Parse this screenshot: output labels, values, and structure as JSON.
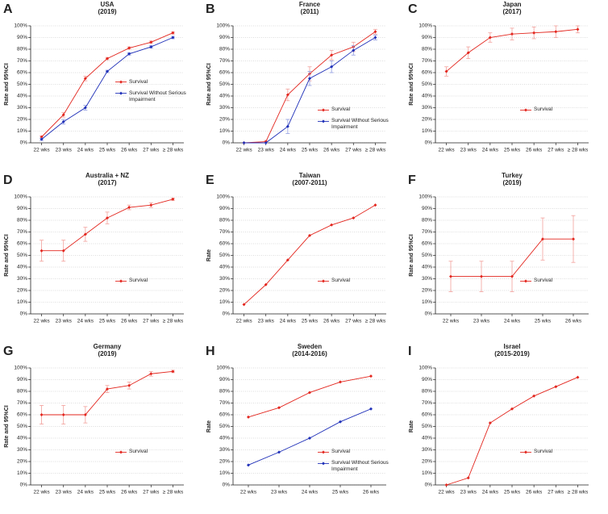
{
  "chart_data": [
    {
      "type": "line",
      "panel": "A",
      "title": "USA",
      "subtitle": "(2019)",
      "y_label": "Rate and 95%CI",
      "categories": [
        "22 wks",
        "23 wks",
        "24 wks",
        "25 wks",
        "26 wks",
        "27 wks",
        "≥ 28 wks"
      ],
      "series": [
        {
          "name": "Survival",
          "color": "#e3261e",
          "values": [
            5,
            24,
            55,
            72,
            81,
            86,
            94
          ],
          "error": [
            1,
            2,
            2,
            1,
            1,
            1,
            1
          ]
        },
        {
          "name": "Survival Without Serious Impairment",
          "color": "#1e2fb8",
          "values": [
            3,
            18,
            30,
            61,
            76,
            82,
            90
          ],
          "error": [
            1,
            2,
            2,
            1,
            1,
            1,
            1
          ]
        }
      ],
      "ylim": [
        0,
        100
      ],
      "yticks": [
        {
          "value": 0,
          "label": "0%"
        },
        {
          "value": 10,
          "label": "10%"
        },
        {
          "value": 20,
          "label": "20%"
        },
        {
          "value": 30,
          "label": "30%"
        },
        {
          "value": 40,
          "label": "40%"
        },
        {
          "value": 50,
          "label": "50%"
        },
        {
          "value": 60,
          "label": "60%"
        },
        {
          "value": 70,
          "label": "70%"
        },
        {
          "value": 80,
          "label": "80%"
        },
        {
          "value": 90,
          "label": "90%"
        },
        {
          "value": 100,
          "label": "100%"
        }
      ],
      "grid": true,
      "legend": "center right"
    },
    {
      "type": "line",
      "panel": "B",
      "title": "France",
      "subtitle": "(2011)",
      "y_label": "Rate and 95%CI",
      "categories": [
        "22 wks",
        "23 wks",
        "24 wks",
        "25 wks",
        "26 wks",
        "27 wks",
        "≥ 28 wks"
      ],
      "series": [
        {
          "name": "Survival",
          "color": "#e3261e",
          "values": [
            0,
            1,
            41,
            59,
            75,
            82,
            95
          ],
          "error": [
            null,
            1,
            5,
            6,
            4,
            4,
            2
          ]
        },
        {
          "name": "Survival Without Serious Impairment",
          "color": "#1e2fb8",
          "values": [
            0,
            0,
            14,
            55,
            65,
            79,
            90
          ],
          "error": [
            null,
            null,
            6,
            6,
            5,
            4,
            2
          ]
        }
      ],
      "ylim": [
        0,
        100
      ],
      "yticks": [
        {
          "value": 0,
          "label": "0%"
        },
        {
          "value": 10,
          "label": "10%"
        },
        {
          "value": 20,
          "label": "20%"
        },
        {
          "value": 30,
          "label": "30%"
        },
        {
          "value": 40,
          "label": "40%"
        },
        {
          "value": 50,
          "label": "50%"
        },
        {
          "value": 60,
          "label": "60%"
        },
        {
          "value": 70,
          "label": "70%"
        },
        {
          "value": 80,
          "label": "80%"
        },
        {
          "value": 90,
          "label": "90%"
        },
        {
          "value": 100,
          "label": "100%"
        }
      ],
      "grid": true,
      "legend": "lower right"
    },
    {
      "type": "line",
      "panel": "C",
      "title": "Japan",
      "subtitle": "(2017)",
      "y_label": "Rate and 95%CI",
      "categories": [
        "22 wks",
        "23 wks",
        "24 wks",
        "25 wks",
        "26 wks",
        "27 wks",
        "≥ 28 wks"
      ],
      "series": [
        {
          "name": "Survival",
          "color": "#e3261e",
          "values": [
            61,
            77,
            90,
            93,
            94,
            95,
            97
          ],
          "error": [
            4,
            5,
            4,
            5,
            5,
            5,
            3
          ]
        }
      ],
      "ylim": [
        0,
        100
      ],
      "yticks": [
        {
          "value": 0,
          "label": "0%"
        },
        {
          "value": 10,
          "label": "10%"
        },
        {
          "value": 20,
          "label": "20%"
        },
        {
          "value": 30,
          "label": "30%"
        },
        {
          "value": 40,
          "label": "40%"
        },
        {
          "value": 50,
          "label": "50%"
        },
        {
          "value": 60,
          "label": "60%"
        },
        {
          "value": 70,
          "label": "70%"
        },
        {
          "value": 80,
          "label": "80%"
        },
        {
          "value": 90,
          "label": "90%"
        },
        {
          "value": 100,
          "label": "100%"
        }
      ],
      "grid": true,
      "legend": "lower right"
    },
    {
      "type": "line",
      "panel": "D",
      "title": "Australia + NZ",
      "subtitle": "(2017)",
      "y_label": "Rate and 95%CI",
      "categories": [
        "22 wks",
        "23 wks",
        "24 wks",
        "25 wks",
        "26 wks",
        "27 wks",
        "≥ 28 wks"
      ],
      "series": [
        {
          "name": "Survival",
          "color": "#e3261e",
          "values": [
            54,
            54,
            68,
            82,
            91,
            93,
            98
          ],
          "error": [
            9,
            9,
            6,
            5,
            2,
            2,
            1
          ]
        }
      ],
      "ylim": [
        0,
        100
      ],
      "yticks": [
        {
          "value": 0,
          "label": "0%"
        },
        {
          "value": 10,
          "label": "10%"
        },
        {
          "value": 20,
          "label": "20%"
        },
        {
          "value": 30,
          "label": "30%"
        },
        {
          "value": 40,
          "label": "40%"
        },
        {
          "value": 50,
          "label": "50%"
        },
        {
          "value": 60,
          "label": "60%"
        },
        {
          "value": 70,
          "label": "70%"
        },
        {
          "value": 80,
          "label": "80%"
        },
        {
          "value": 90,
          "label": "90%"
        },
        {
          "value": 100,
          "label": "100%"
        }
      ],
      "grid": true,
      "legend": "lower right"
    },
    {
      "type": "line",
      "panel": "E",
      "title": "Taiwan",
      "subtitle": "(2007-2011)",
      "y_label": "Rate",
      "categories": [
        "22 wks",
        "23 wks",
        "24 wks",
        "25 wks",
        "26 wks",
        "27 wks",
        "≥ 28 wks"
      ],
      "series": [
        {
          "name": "Survival",
          "color": "#e3261e",
          "values": [
            8,
            25,
            46,
            67,
            76,
            82,
            93
          ]
        }
      ],
      "ylim": [
        0,
        100
      ],
      "yticks": [
        {
          "value": 0,
          "label": "0%"
        },
        {
          "value": 10,
          "label": "10%"
        },
        {
          "value": 20,
          "label": "20%"
        },
        {
          "value": 30,
          "label": "30%"
        },
        {
          "value": 40,
          "label": "40%"
        },
        {
          "value": 50,
          "label": "50%"
        },
        {
          "value": 60,
          "label": "60%"
        },
        {
          "value": 70,
          "label": "70%"
        },
        {
          "value": 80,
          "label": "80%"
        },
        {
          "value": 90,
          "label": "90%"
        },
        {
          "value": 100,
          "label": "100%"
        }
      ],
      "grid": true,
      "legend": "lower right"
    },
    {
      "type": "line",
      "panel": "F",
      "title": "Turkey",
      "subtitle": "(2019)",
      "y_label": "Rate and 95%CI",
      "categories": [
        "22 wks",
        "23 wks",
        "24 wks",
        "25 wks",
        "26 wks"
      ],
      "series": [
        {
          "name": "Survival",
          "color": "#e3261e",
          "values": [
            32,
            32,
            32,
            64,
            64
          ],
          "error": [
            13,
            13,
            13,
            18,
            20
          ]
        }
      ],
      "ylim": [
        0,
        100
      ],
      "yticks": [
        {
          "value": 0,
          "label": "0%"
        },
        {
          "value": 10,
          "label": "10%"
        },
        {
          "value": 20,
          "label": "20%"
        },
        {
          "value": 30,
          "label": "30%"
        },
        {
          "value": 40,
          "label": "40%"
        },
        {
          "value": 50,
          "label": "50%"
        },
        {
          "value": 60,
          "label": "60%"
        },
        {
          "value": 70,
          "label": "70%"
        },
        {
          "value": 80,
          "label": "80%"
        },
        {
          "value": 90,
          "label": "90%"
        },
        {
          "value": 100,
          "label": "100%"
        }
      ],
      "grid": true,
      "legend": "lower right"
    },
    {
      "type": "line",
      "panel": "G",
      "title": "Germany",
      "subtitle": "(2019)",
      "y_label": "Rate and 95%CI",
      "categories": [
        "22 wks",
        "23 wks",
        "24 wks",
        "25 wks",
        "26 wks",
        "27 wks",
        "≥ 28 wks"
      ],
      "series": [
        {
          "name": "Survival",
          "color": "#e3261e",
          "values": [
            60,
            60,
            60,
            82,
            85,
            95,
            97
          ],
          "error": [
            8,
            8,
            7,
            3,
            3,
            2,
            1
          ]
        }
      ],
      "ylim": [
        0,
        100
      ],
      "yticks": [
        {
          "value": 0,
          "label": "0%"
        },
        {
          "value": 10,
          "label": "10%"
        },
        {
          "value": 20,
          "label": "20%"
        },
        {
          "value": 30,
          "label": "30%"
        },
        {
          "value": 40,
          "label": "40%"
        },
        {
          "value": 50,
          "label": "50%"
        },
        {
          "value": 60,
          "label": "60%"
        },
        {
          "value": 70,
          "label": "70%"
        },
        {
          "value": 80,
          "label": "80%"
        },
        {
          "value": 90,
          "label": "90%"
        },
        {
          "value": 100,
          "label": "100%"
        }
      ],
      "grid": true,
      "legend": "lower right"
    },
    {
      "type": "line",
      "panel": "H",
      "title": "Sweden",
      "subtitle": "(2014-2016)",
      "y_label": "Rate",
      "categories": [
        "22 wks",
        "23 wks",
        "24 wks",
        "25 wks",
        "26 wks"
      ],
      "series": [
        {
          "name": "Survival",
          "color": "#e3261e",
          "values": [
            58,
            66,
            79,
            88,
            93
          ]
        },
        {
          "name": "Survival Without Serious Impairment",
          "color": "#1e2fb8",
          "values": [
            17,
            28,
            40,
            54,
            65
          ]
        }
      ],
      "ylim": [
        0,
        100
      ],
      "yticks": [
        {
          "value": 0,
          "label": "0%"
        },
        {
          "value": 10,
          "label": "10%"
        },
        {
          "value": 20,
          "label": "20%"
        },
        {
          "value": 30,
          "label": "30%"
        },
        {
          "value": 40,
          "label": "40%"
        },
        {
          "value": 50,
          "label": "50%"
        },
        {
          "value": 60,
          "label": "60%"
        },
        {
          "value": 70,
          "label": "70%"
        },
        {
          "value": 80,
          "label": "80%"
        },
        {
          "value": 90,
          "label": "90%"
        },
        {
          "value": 100,
          "label": "100%"
        }
      ],
      "grid": true,
      "legend": "lower right"
    },
    {
      "type": "line",
      "panel": "I",
      "title": "Israel",
      "subtitle": "(2015-2019)",
      "y_label": "Rate",
      "categories": [
        "22 wks",
        "23 wks",
        "24 wks",
        "25 wks",
        "26 wks",
        "27 wks",
        "≥ 28 wks"
      ],
      "series": [
        {
          "name": "Survival",
          "color": "#e3261e",
          "values": [
            0,
            6,
            53,
            65,
            76,
            84,
            92
          ]
        }
      ],
      "ylim": [
        0,
        100
      ],
      "yticks": [
        {
          "value": 0,
          "label": "0%"
        },
        {
          "value": 10,
          "label": "10%"
        },
        {
          "value": 20,
          "label": "20%"
        },
        {
          "value": 30,
          "label": "30%"
        },
        {
          "value": 40,
          "label": "40%"
        },
        {
          "value": 50,
          "label": "50%"
        },
        {
          "value": 60,
          "label": "60%"
        },
        {
          "value": 70,
          "label": "70%"
        },
        {
          "value": 80,
          "label": "80%"
        },
        {
          "value": 90,
          "label": "90%"
        },
        {
          "value": 100,
          "label": "100%"
        }
      ],
      "grid": true,
      "legend": "lower right"
    }
  ]
}
